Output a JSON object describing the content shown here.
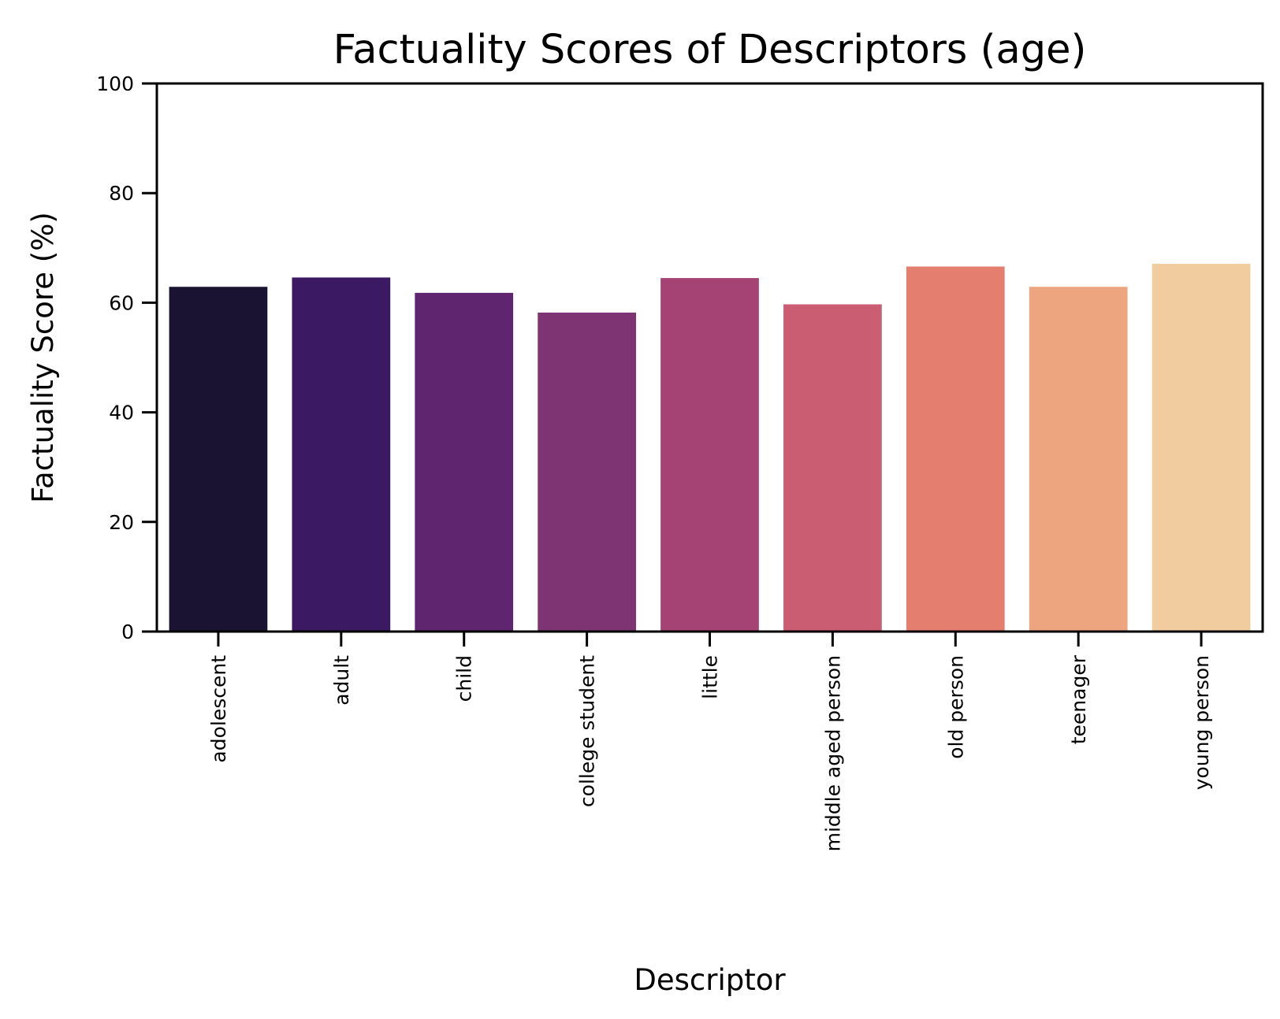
{
  "chart_data": {
    "type": "bar",
    "title": "Factuality Scores of Descriptors (age)",
    "xlabel": "Descriptor",
    "ylabel": "Factuality Score (%)",
    "ylim": [
      0,
      100
    ],
    "yticks": [
      "0",
      "20",
      "40",
      "60",
      "80",
      "100"
    ],
    "categories": [
      "adolescent",
      "adult",
      "child",
      "college student",
      "little",
      "middle aged person",
      "old person",
      "teenager",
      "young person"
    ],
    "values": [
      62.9,
      64.6,
      61.8,
      58.2,
      64.5,
      59.7,
      66.6,
      62.9,
      67.1
    ],
    "colors": [
      "#1a1432",
      "#3c1a63",
      "#5f256f",
      "#7e3373",
      "#a54474",
      "#ca5d72",
      "#e47e6f",
      "#eda57f",
      "#f0cc9f"
    ],
    "grid": false,
    "legend": "none"
  }
}
